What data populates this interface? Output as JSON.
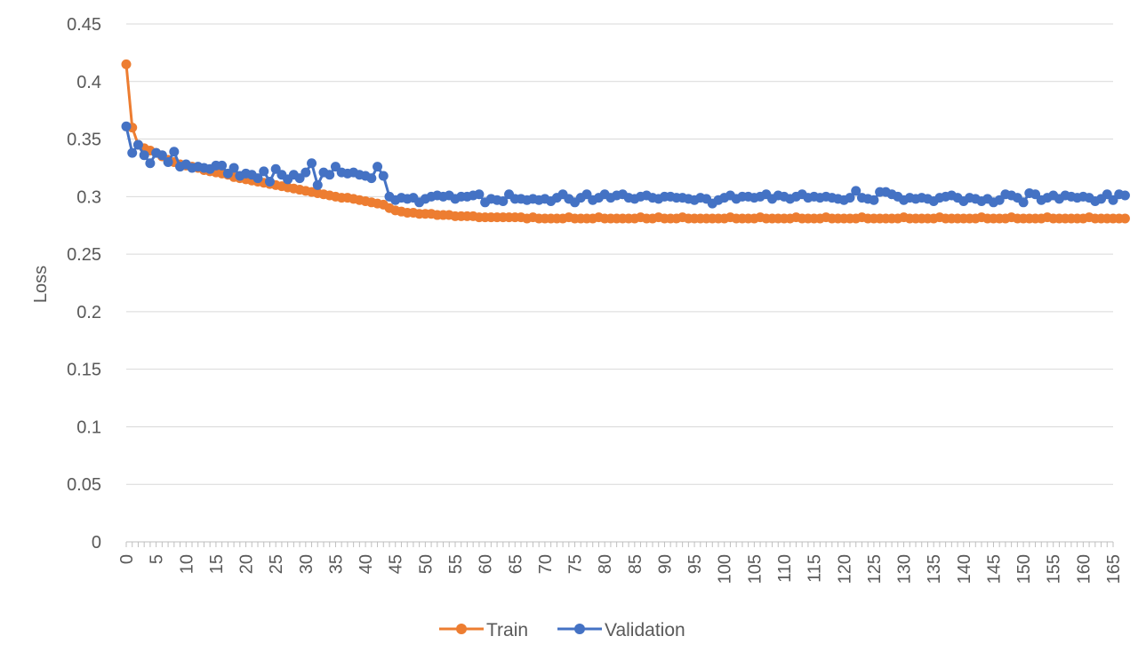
{
  "chart_data": {
    "type": "line",
    "title": "",
    "xlabel": "",
    "ylabel": "Loss",
    "ylim": [
      0,
      0.45
    ],
    "xlim": [
      0,
      165
    ],
    "ytick_labels": [
      "0",
      "0.05",
      "0.1",
      "0.15",
      "0.2",
      "0.25",
      "0.3",
      "0.35",
      "0.4",
      "0.45"
    ],
    "xtick_labels": [
      "0",
      "5",
      "10",
      "15",
      "20",
      "25",
      "30",
      "35",
      "40",
      "45",
      "50",
      "55",
      "60",
      "65",
      "70",
      "75",
      "80",
      "85",
      "90",
      "95",
      "100",
      "105",
      "110",
      "115",
      "120",
      "125",
      "130",
      "135",
      "140",
      "145",
      "150",
      "155",
      "160",
      "165"
    ],
    "grid": true,
    "legend_position": "bottom",
    "colors": {
      "Train": "#ed7d31",
      "Validation": "#4472c4"
    },
    "series": [
      {
        "name": "Train",
        "values": [
          0.415,
          0.36,
          0.345,
          0.342,
          0.34,
          0.338,
          0.335,
          0.332,
          0.33,
          0.328,
          0.327,
          0.326,
          0.325,
          0.323,
          0.322,
          0.321,
          0.32,
          0.319,
          0.317,
          0.316,
          0.315,
          0.314,
          0.313,
          0.312,
          0.311,
          0.31,
          0.309,
          0.308,
          0.307,
          0.306,
          0.305,
          0.304,
          0.303,
          0.302,
          0.301,
          0.3,
          0.299,
          0.299,
          0.298,
          0.297,
          0.296,
          0.295,
          0.294,
          0.293,
          0.29,
          0.288,
          0.287,
          0.286,
          0.286,
          0.285,
          0.285,
          0.285,
          0.284,
          0.284,
          0.284,
          0.283,
          0.283,
          0.283,
          0.283,
          0.282,
          0.282,
          0.282,
          0.282,
          0.282,
          0.282,
          0.282,
          0.282,
          0.281,
          0.282,
          0.281,
          0.281,
          0.281,
          0.281,
          0.281,
          0.282,
          0.281,
          0.281,
          0.281,
          0.281,
          0.282,
          0.281,
          0.281,
          0.281,
          0.281,
          0.281,
          0.281,
          0.282,
          0.281,
          0.281,
          0.282,
          0.281,
          0.281,
          0.281,
          0.282,
          0.281,
          0.281,
          0.281,
          0.281,
          0.281,
          0.281,
          0.281,
          0.282,
          0.281,
          0.281,
          0.281,
          0.281,
          0.282,
          0.281,
          0.281,
          0.281,
          0.281,
          0.281,
          0.282,
          0.281,
          0.281,
          0.281,
          0.281,
          0.282,
          0.281,
          0.281,
          0.281,
          0.281,
          0.281,
          0.282,
          0.281,
          0.281,
          0.281,
          0.281,
          0.281,
          0.281,
          0.282,
          0.281,
          0.281,
          0.281,
          0.281,
          0.281,
          0.282,
          0.281,
          0.281,
          0.281,
          0.281,
          0.281,
          0.281,
          0.282,
          0.281,
          0.281,
          0.281,
          0.281,
          0.282,
          0.281,
          0.281,
          0.281,
          0.281,
          0.281,
          0.282,
          0.281,
          0.281,
          0.281,
          0.281,
          0.281,
          0.281,
          0.282,
          0.281,
          0.281,
          0.281,
          0.281,
          0.281,
          0.281
        ]
      },
      {
        "name": "Validation",
        "values": [
          0.361,
          0.338,
          0.345,
          0.336,
          0.329,
          0.338,
          0.336,
          0.33,
          0.339,
          0.326,
          0.328,
          0.325,
          0.326,
          0.325,
          0.324,
          0.327,
          0.327,
          0.32,
          0.325,
          0.318,
          0.32,
          0.319,
          0.316,
          0.322,
          0.313,
          0.324,
          0.319,
          0.315,
          0.319,
          0.316,
          0.321,
          0.329,
          0.31,
          0.321,
          0.319,
          0.326,
          0.321,
          0.32,
          0.321,
          0.319,
          0.318,
          0.316,
          0.326,
          0.318,
          0.3,
          0.297,
          0.299,
          0.298,
          0.299,
          0.295,
          0.298,
          0.3,
          0.301,
          0.3,
          0.301,
          0.298,
          0.3,
          0.3,
          0.301,
          0.302,
          0.295,
          0.298,
          0.297,
          0.296,
          0.302,
          0.298,
          0.298,
          0.297,
          0.298,
          0.297,
          0.298,
          0.296,
          0.299,
          0.302,
          0.298,
          0.295,
          0.299,
          0.302,
          0.297,
          0.299,
          0.302,
          0.299,
          0.301,
          0.302,
          0.299,
          0.298,
          0.3,
          0.301,
          0.299,
          0.298,
          0.3,
          0.3,
          0.299,
          0.299,
          0.298,
          0.297,
          0.299,
          0.298,
          0.294,
          0.297,
          0.299,
          0.301,
          0.298,
          0.3,
          0.3,
          0.299,
          0.3,
          0.302,
          0.298,
          0.301,
          0.3,
          0.298,
          0.3,
          0.302,
          0.299,
          0.3,
          0.299,
          0.3,
          0.299,
          0.298,
          0.297,
          0.299,
          0.305,
          0.299,
          0.298,
          0.297,
          0.304,
          0.304,
          0.302,
          0.3,
          0.297,
          0.299,
          0.298,
          0.299,
          0.298,
          0.296,
          0.299,
          0.3,
          0.301,
          0.299,
          0.296,
          0.299,
          0.298,
          0.296,
          0.298,
          0.295,
          0.297,
          0.302,
          0.301,
          0.299,
          0.295,
          0.303,
          0.302,
          0.297,
          0.299,
          0.301,
          0.298,
          0.301,
          0.3,
          0.299,
          0.3,
          0.299,
          0.296,
          0.298,
          0.302,
          0.297,
          0.302,
          0.301
        ]
      }
    ]
  }
}
